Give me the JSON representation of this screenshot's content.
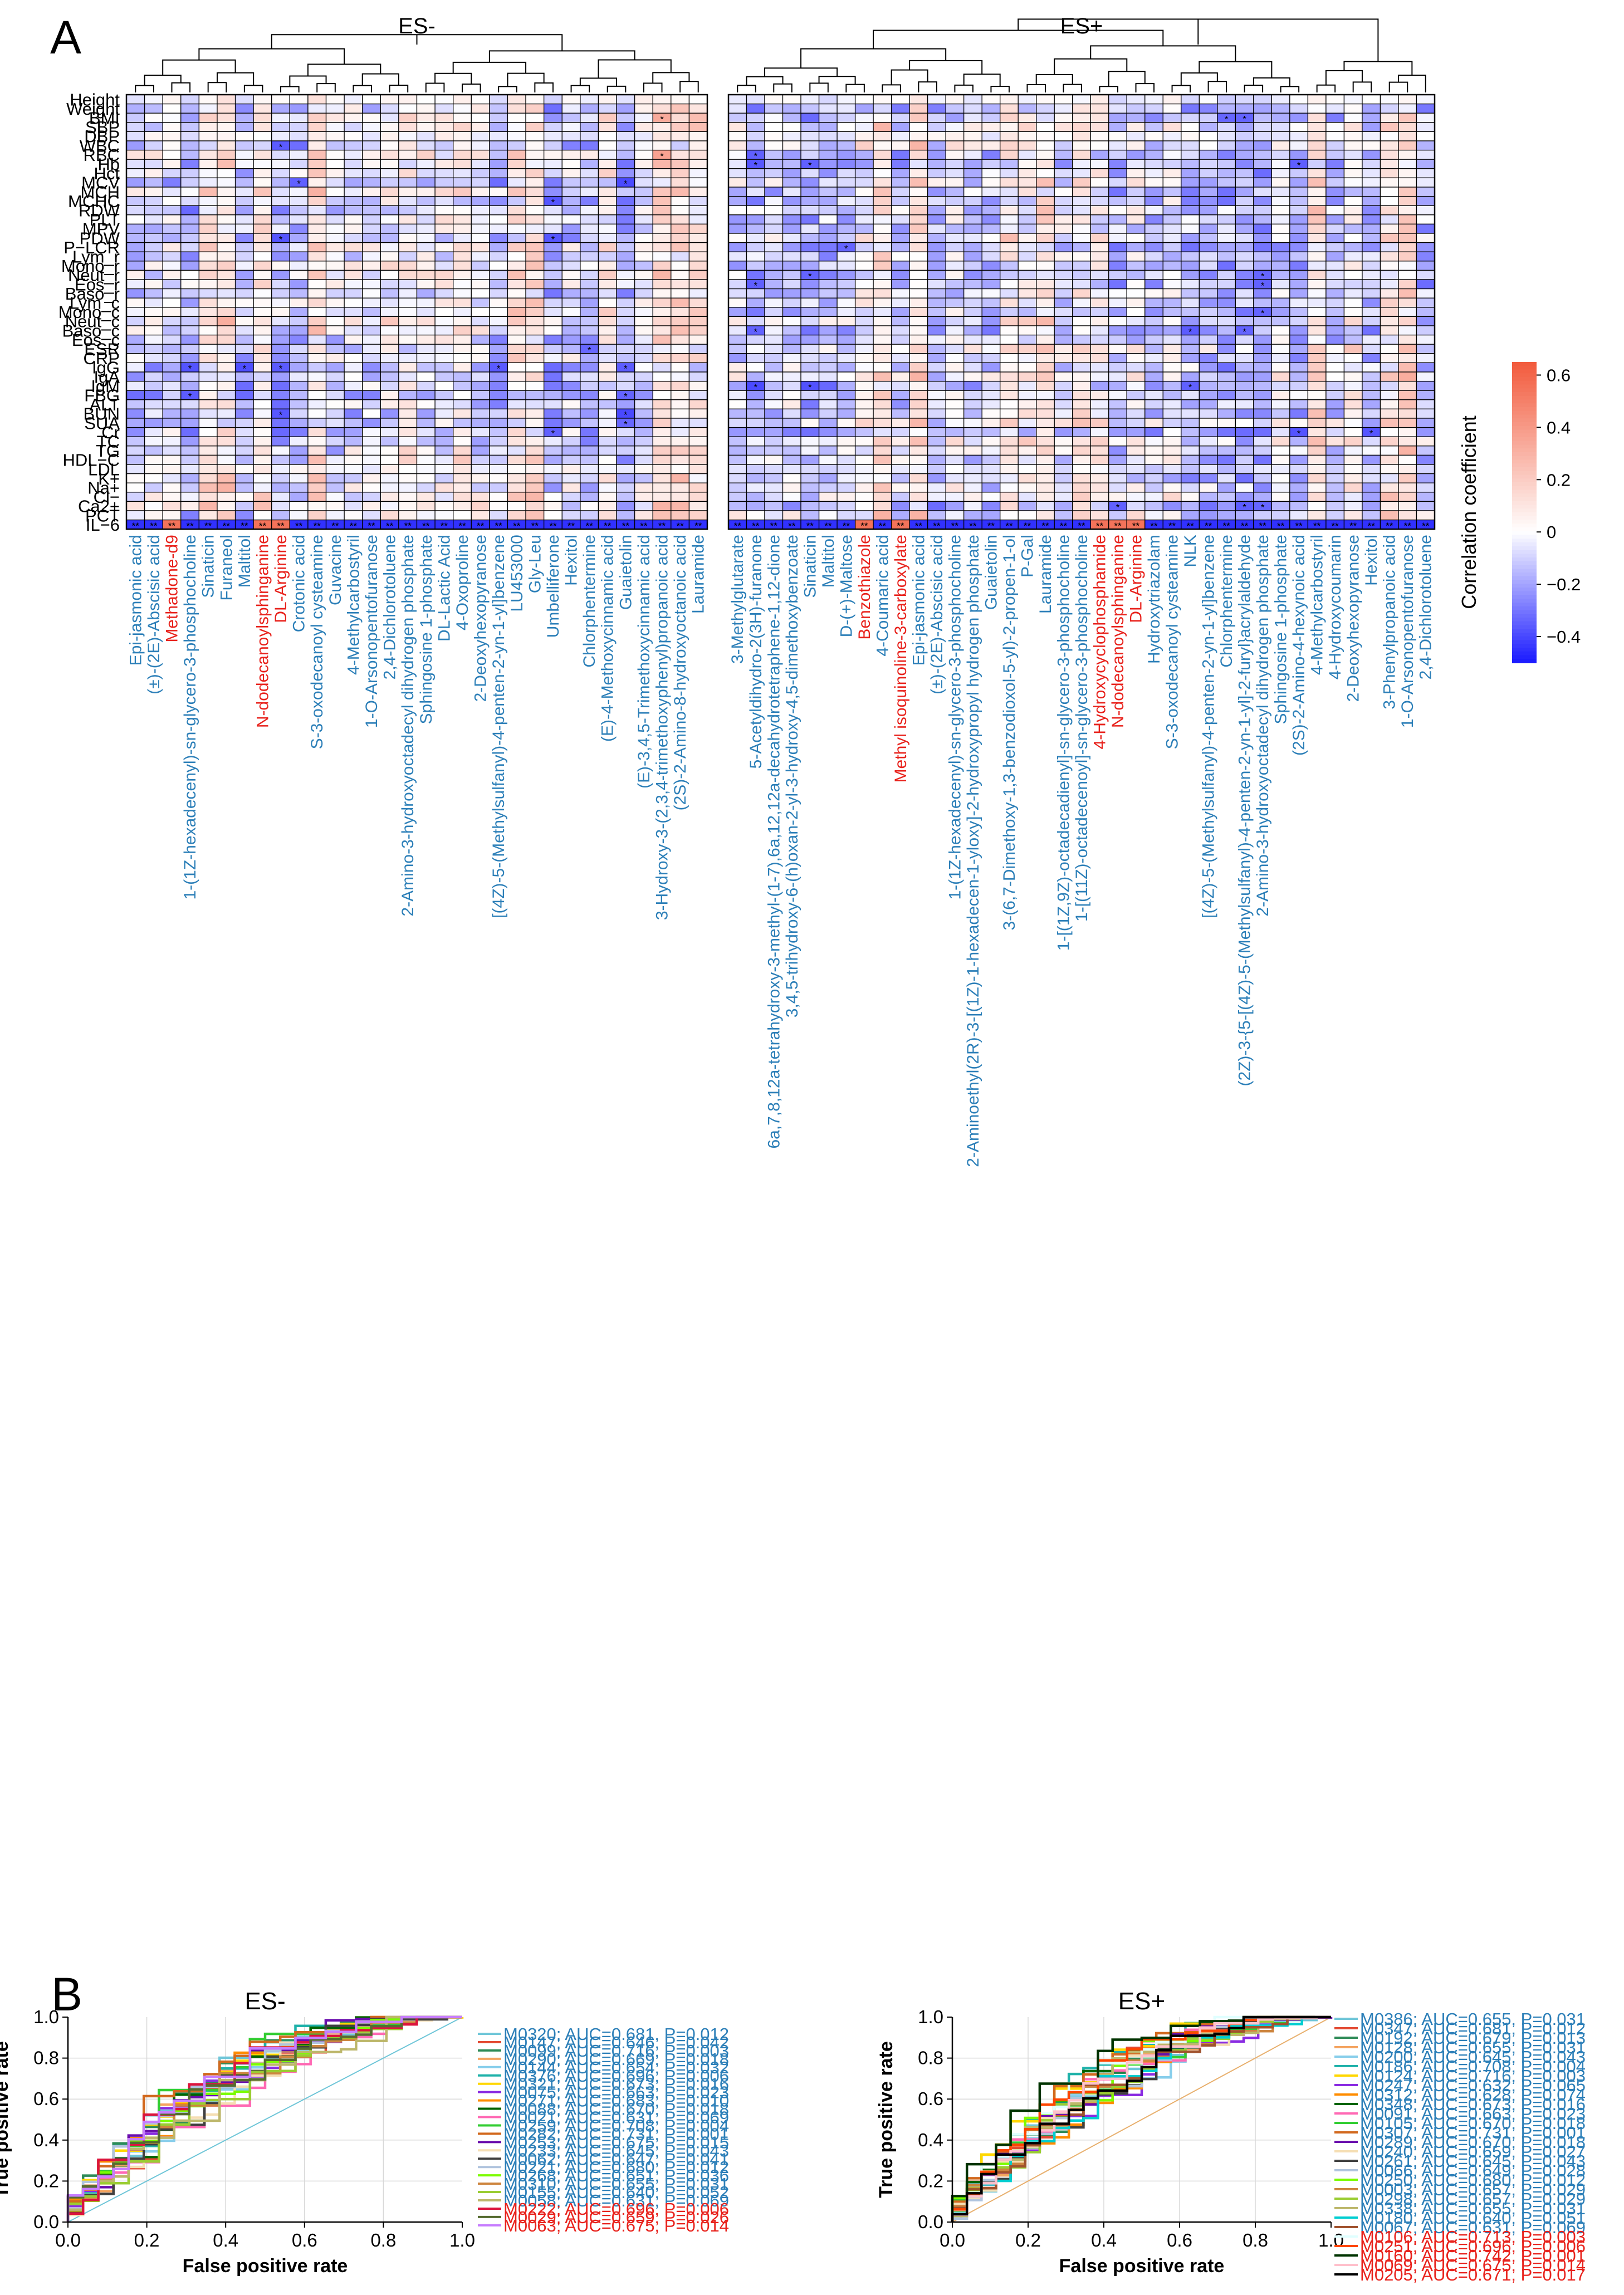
{
  "panel_labels": {
    "a": "A",
    "b": "B"
  },
  "colors": {
    "neg": "#1a1aff",
    "pos": "#f25a3c",
    "mid": "#ffffff",
    "label_blue": "#2c7fb8",
    "label_red": "#e8221c",
    "grid_line": "#000000"
  },
  "chart_data": [
    {
      "type": "heatmap",
      "id": "heatmap",
      "group_titles": [
        "ES-",
        "ES+"
      ],
      "rows": [
        "Height",
        "Weight",
        "BMI",
        "SBP",
        "DBP",
        "WBC",
        "RBC",
        "Hb",
        "Hct",
        "MCV",
        "MCH",
        "MCHC",
        "RDW",
        "PLT",
        "MPV",
        "PDW",
        "P−LCR",
        "Lym_r",
        "Mono_r",
        "Neut_r",
        "Eos_r",
        "Baso_r",
        "Lym_c",
        "Mono_c",
        "Neut_c",
        "Baso_c",
        "Eos_c",
        "ESR",
        "CRP",
        "IgG",
        "IgA",
        "IgM",
        "FBG",
        "ALT",
        "BUN",
        "SUA",
        "Cr",
        "TC",
        "TG",
        "HDL−C",
        "LDL",
        "K+",
        "Na+",
        "Cl−",
        "Ca2+",
        "PCT",
        "IL−6"
      ],
      "colorbar": {
        "title": "Correlation coefficient",
        "ticks": [
          0.6,
          0.4,
          0.2,
          0,
          -0.2,
          -0.4
        ],
        "range": [
          -0.5,
          0.65
        ]
      },
      "left_columns": [
        {
          "t": "Epi-jasmonic acid",
          "c": "b"
        },
        {
          "t": "(±)-(2E)-Abscisic acid",
          "c": "b"
        },
        {
          "t": "Methadone-d9",
          "c": "r"
        },
        {
          "t": "1-(1Z-hexadecenyl)-sn-glycero-3-phosphocholine",
          "c": "b"
        },
        {
          "t": "Sinaticin",
          "c": "b"
        },
        {
          "t": "Furaneol",
          "c": "b"
        },
        {
          "t": "Maltitol",
          "c": "b"
        },
        {
          "t": "N-dodecanoylsphinganine",
          "c": "r"
        },
        {
          "t": "DL-Arginine",
          "c": "r"
        },
        {
          "t": "Crotonic acid",
          "c": "b"
        },
        {
          "t": "S-3-oxodecanoyl cysteamine",
          "c": "b"
        },
        {
          "t": "Guvacine",
          "c": "b"
        },
        {
          "t": "4-Methylcarbostyril",
          "c": "b"
        },
        {
          "t": "1-O-Arsonopentofuranose",
          "c": "b"
        },
        {
          "t": "2,4-Dichlorotoluene",
          "c": "b"
        },
        {
          "t": "2-Amino-3-hydroxyoctadecyl dihydrogen phosphate",
          "c": "b"
        },
        {
          "t": "Sphingosine 1-phosphate",
          "c": "b"
        },
        {
          "t": "DL-Lactic Acid",
          "c": "b"
        },
        {
          "t": "4-Oxoproline",
          "c": "b"
        },
        {
          "t": "2-Deoxyhexopyranose",
          "c": "b"
        },
        {
          "t": "[(4Z)-5-(Methylsulfanyl)-4-penten-2-yn-1-yl]benzene",
          "c": "b"
        },
        {
          "t": "LU453000",
          "c": "b"
        },
        {
          "t": "Gly-Leu",
          "c": "b"
        },
        {
          "t": "Umbelliferone",
          "c": "b"
        },
        {
          "t": "Hexitol",
          "c": "b"
        },
        {
          "t": "Chlorphentermine",
          "c": "b"
        },
        {
          "t": "(E)-4-Methoxycinnamic acid",
          "c": "b"
        },
        {
          "t": "Guaietolin",
          "c": "b"
        },
        {
          "t": "(E)-3,4,5-Trimethoxycinnamic acid",
          "c": "b"
        },
        {
          "t": "3-Hydroxy-3-(2,3,4-trimethoxyphenyl)propanoic acid",
          "c": "b"
        },
        {
          "t": "(2S)-2-Amino-8-hydroxyoctanoic acid",
          "c": "b"
        },
        {
          "t": "Lauramide",
          "c": "b"
        }
      ],
      "right_columns": [
        {
          "t": "3-Methylglutarate",
          "c": "b"
        },
        {
          "t": "5-Acetyldihydro-2(3H)-furanone",
          "c": "b"
        },
        {
          "t": "6a,7,8,12a-tetrahydroxy-3-methyl-(1-7),6a,12,12a-decahydrotetraphene-1,12-dione",
          "c": "b"
        },
        {
          "t": "3,4,5-trihydroxy-6-(h)oxan-2-yl-3-hydroxy-4,5-dimethoxybenzoate",
          "c": "b"
        },
        {
          "t": "Sinaticin",
          "c": "b"
        },
        {
          "t": "Maltitol",
          "c": "b"
        },
        {
          "t": "D-(+)-Maltose",
          "c": "b"
        },
        {
          "t": "Benzothiazole",
          "c": "r"
        },
        {
          "t": "4-Coumaric acid",
          "c": "b"
        },
        {
          "t": "Methyl isoquinoline-3-carboxylate",
          "c": "r"
        },
        {
          "t": "Epi-jasmonic acid",
          "c": "b"
        },
        {
          "t": "(±)-(2E)-Abscisic acid",
          "c": "b"
        },
        {
          "t": "1-(1Z-hexadecenyl)-sn-glycero-3-phosphocholine",
          "c": "b"
        },
        {
          "t": "2-Aminoethyl(2R)-3-[(1Z)-1-hexadecen-1-yloxy]-2-hydroxypropyl hydrogen phosphate",
          "c": "b"
        },
        {
          "t": "Guaietolin",
          "c": "b"
        },
        {
          "t": "3-(6,7-Dimethoxy-1,3-benzodioxol-5-yl)-2-propen-1-ol",
          "c": "b"
        },
        {
          "t": "P-Gal",
          "c": "b"
        },
        {
          "t": "Lauramide",
          "c": "b"
        },
        {
          "t": "1-[(1Z,9Z)-octadecadienyl]-sn-glycero-3-phosphocholine",
          "c": "b"
        },
        {
          "t": "1-[(11Z)-octadecenoyl]-sn-glycero-3-phosphocholine",
          "c": "b"
        },
        {
          "t": "4-Hydroxycyclophosphamide",
          "c": "r"
        },
        {
          "t": "N-dodecanoylsphinganine",
          "c": "r"
        },
        {
          "t": "DL-Arginine",
          "c": "r"
        },
        {
          "t": "Hydroxytriazolam",
          "c": "b"
        },
        {
          "t": "S-3-oxodecanoyl cysteamine",
          "c": "b"
        },
        {
          "t": "NLK",
          "c": "b"
        },
        {
          "t": "[(4Z)-5-(Methylsulfanyl)-4-penten-2-yn-1-yl]benzene",
          "c": "b"
        },
        {
          "t": "Chlorphentermine",
          "c": "b"
        },
        {
          "t": "(2Z)-3-{5-[(4Z)-5-(Methylsulfanyl)-4-penten-2-yn-1-yl]-2-furyl}acrylaldehyde",
          "c": "b"
        },
        {
          "t": "2-Amino-3-hydroxyoctadecyl dihydrogen phosphate",
          "c": "b"
        },
        {
          "t": "Sphingosine 1-phosphate",
          "c": "b"
        },
        {
          "t": "(2S)-2-Amino-4-hexynoic acid",
          "c": "b"
        },
        {
          "t": "4-Methylcarbostyril",
          "c": "b"
        },
        {
          "t": "4-Hydroxycoumarin",
          "c": "b"
        },
        {
          "t": "2-Deoxyhexopyranose",
          "c": "b"
        },
        {
          "t": "Hexitol",
          "c": "b"
        },
        {
          "t": "3-Phenylpropanoic acid",
          "c": "b"
        },
        {
          "t": "1-O-Arsonopentofuranose",
          "c": "b"
        },
        {
          "t": "2,4-Dichlorotoluene",
          "c": "b"
        }
      ]
    },
    {
      "type": "line",
      "id": "roc_left",
      "title": "ES-",
      "xlabel": "False positive rate",
      "ylabel": "True positive rate",
      "xlim": [
        0,
        1
      ],
      "ylim": [
        0,
        1
      ],
      "ticks": [
        "0.0",
        "0.2",
        "0.4",
        "0.6",
        "0.8",
        "1.0"
      ],
      "legend": [
        {
          "label": "M0320; AUC=0.681, P=0.012",
          "color": "#6fc6d8",
          "lc": "b",
          "auc": 0.681
        },
        {
          "label": "M0147; AUC=0.646, P=0.042",
          "color": "#e34a33",
          "lc": "b",
          "auc": 0.646
        },
        {
          "label": "M0099; AUC=0.716, P=0.003",
          "color": "#2e8b57",
          "lc": "b",
          "auc": 0.716
        },
        {
          "label": "M0290; AUC=0.669, P=0.018",
          "color": "#f4a460",
          "lc": "b",
          "auc": 0.669
        },
        {
          "label": "M0144; AUC=0.654, P=0.032",
          "color": "#87ceeb",
          "lc": "b",
          "auc": 0.654
        },
        {
          "label": "M0376; AUC=0.696, P=0.006",
          "color": "#20b2aa",
          "lc": "b",
          "auc": 0.696
        },
        {
          "label": "M0321; AUC=0.673, P=0.016",
          "color": "#ffd700",
          "lc": "b",
          "auc": 0.673
        },
        {
          "label": "M0075; AUC=0.663, P=0.023",
          "color": "#8a2be2",
          "lc": "b",
          "auc": 0.663
        },
        {
          "label": "M0271; AUC=0.683, P=0.010",
          "color": "#ff8c00",
          "lc": "b",
          "auc": 0.683
        },
        {
          "label": "M0088; AUC=0.670, P=0.018",
          "color": "#006400",
          "lc": "b",
          "auc": 0.67
        },
        {
          "label": "M0021; AUC=0.631, P=0.069",
          "color": "#ff69b4",
          "lc": "b",
          "auc": 0.631
        },
        {
          "label": "M0259; AUC=0.708, P=0.004",
          "color": "#32cd32",
          "lc": "b",
          "auc": 0.708
        },
        {
          "label": "M0282; AUC=0.731, P=0.001",
          "color": "#d2691e",
          "lc": "b",
          "auc": 0.731
        },
        {
          "label": "M0253; AUC=0.675, P=0.015",
          "color": "#6a0dad",
          "lc": "b",
          "auc": 0.675
        },
        {
          "label": "M0233; AUC=0.645, P=0.043",
          "color": "#f5deb3",
          "lc": "b",
          "auc": 0.645
        },
        {
          "label": "M0062; AUC=0.647, P=0.041",
          "color": "#404040",
          "lc": "b",
          "auc": 0.647
        },
        {
          "label": "M0221; AUC=0.680, P=0.012",
          "color": "#b0c4de",
          "lc": "b",
          "auc": 0.68
        },
        {
          "label": "M0268; AUC=0.651, P=0.036",
          "color": "#7cfc00",
          "lc": "b",
          "auc": 0.651
        },
        {
          "label": "M0310; AUC=0.655, P=0.031",
          "color": "#cd853f",
          "lc": "b",
          "auc": 0.655
        },
        {
          "label": "M0155; AUC=0.640, P=0.052",
          "color": "#9acd32",
          "lc": "b",
          "auc": 0.64
        },
        {
          "label": "M0058; AUC=0.631, P=0.069",
          "color": "#bdb76b",
          "lc": "b",
          "auc": 0.631
        },
        {
          "label": "M0222; AUC=0.696, P=0.006",
          "color": "#dc143c",
          "lc": "r",
          "auc": 0.696
        },
        {
          "label": "M0029; AUC=0.659, P=0.026",
          "color": "#556b2f",
          "lc": "r",
          "auc": 0.659
        },
        {
          "label": "M0063; AUC=0.675, P=0.014",
          "color": "#c77dff",
          "lc": "r",
          "auc": 0.675
        }
      ]
    },
    {
      "type": "line",
      "id": "roc_right",
      "title": "ES+",
      "xlabel": "False positive rate",
      "ylabel": "True positive rate",
      "xlim": [
        0,
        1
      ],
      "ylim": [
        0,
        1
      ],
      "ticks": [
        "0.0",
        "0.2",
        "0.4",
        "0.6",
        "0.8",
        "1.0"
      ],
      "legend": [
        {
          "label": "M0386; AUC=0.655, P=0.031",
          "color": "#6fc6d8",
          "lc": "b",
          "auc": 0.655
        },
        {
          "label": "M0347; AUC=0.681, P=0.012",
          "color": "#e34a33",
          "lc": "b",
          "auc": 0.681
        },
        {
          "label": "M0192; AUC=0.679, P=0.013",
          "color": "#2e8b57",
          "lc": "b",
          "auc": 0.679
        },
        {
          "label": "M0128; AUC=0.655, P=0.031",
          "color": "#f4a460",
          "lc": "b",
          "auc": 0.655
        },
        {
          "label": "M0200; AUC=0.645, P=0.043",
          "color": "#87ceeb",
          "lc": "b",
          "auc": 0.645
        },
        {
          "label": "M0186; AUC=0.708, P=0.004",
          "color": "#20b2aa",
          "lc": "b",
          "auc": 0.708
        },
        {
          "label": "M0124; AUC=0.716, P=0.003",
          "color": "#ffd700",
          "lc": "b",
          "auc": 0.716
        },
        {
          "label": "M0247; AUC=0.632, P=0.065",
          "color": "#8a2be2",
          "lc": "b",
          "auc": 0.632
        },
        {
          "label": "M0312; AUC=0.628, P=0.074",
          "color": "#ff8c00",
          "lc": "b",
          "auc": 0.628
        },
        {
          "label": "M0348; AUC=0.673, P=0.016",
          "color": "#006400",
          "lc": "b",
          "auc": 0.673
        },
        {
          "label": "M0091; AUC=0.663, P=0.023",
          "color": "#ff69b4",
          "lc": "b",
          "auc": 0.663
        },
        {
          "label": "M0105; AUC=0.670, P=0.018",
          "color": "#32cd32",
          "lc": "b",
          "auc": 0.67
        },
        {
          "label": "M0307; AUC=0.731, P=0.001",
          "color": "#d2691e",
          "lc": "b",
          "auc": 0.731
        },
        {
          "label": "M0289; AUC=0.670, P=0.018",
          "color": "#6a0dad",
          "lc": "b",
          "auc": 0.67
        },
        {
          "label": "M0240; AUC=0.659, P=0.027",
          "color": "#f5deb3",
          "lc": "b",
          "auc": 0.659
        },
        {
          "label": "M0261; AUC=0.645, P=0.043",
          "color": "#404040",
          "lc": "b",
          "auc": 0.645
        },
        {
          "label": "M0066; AUC=0.649, P=0.028",
          "color": "#b0c4de",
          "lc": "b",
          "auc": 0.649
        },
        {
          "label": "M0250; AUC=0.680, P=0.012",
          "color": "#7cfc00",
          "lc": "b",
          "auc": 0.68
        },
        {
          "label": "M0003; AUC=0.657, P=0.029",
          "color": "#cd853f",
          "lc": "b",
          "auc": 0.657
        },
        {
          "label": "M0298; AUC=0.657, P=0.029",
          "color": "#9acd32",
          "lc": "b",
          "auc": 0.657
        },
        {
          "label": "M0338; AUC=0.655, P=0.031",
          "color": "#bdb76b",
          "lc": "b",
          "auc": 0.655
        },
        {
          "label": "M0180; AUC=0.640, P=0.051",
          "color": "#00ced1",
          "lc": "b",
          "auc": 0.64
        },
        {
          "label": "M0067; AUC=0.631, P=0.069",
          "color": "#a0522d",
          "lc": "b",
          "auc": 0.631
        },
        {
          "label": "M0106; AUC=0.713, P=0.003",
          "color": "#e0ffff",
          "lc": "r",
          "auc": 0.713
        },
        {
          "label": "M0251; AUC=0.696, P=0.006",
          "color": "#ff4500",
          "lc": "r",
          "auc": 0.696
        },
        {
          "label": "M0160; AUC=0.742, P=0.001",
          "color": "#003300",
          "lc": "r",
          "auc": 0.742
        },
        {
          "label": "M0069; AUC=0.675, P=0.014",
          "color": "#ffc0cb",
          "lc": "r",
          "auc": 0.675
        },
        {
          "label": "M0205; AUC=0.671, P=0.017",
          "color": "#000000",
          "lc": "r",
          "auc": 0.671
        }
      ]
    }
  ]
}
